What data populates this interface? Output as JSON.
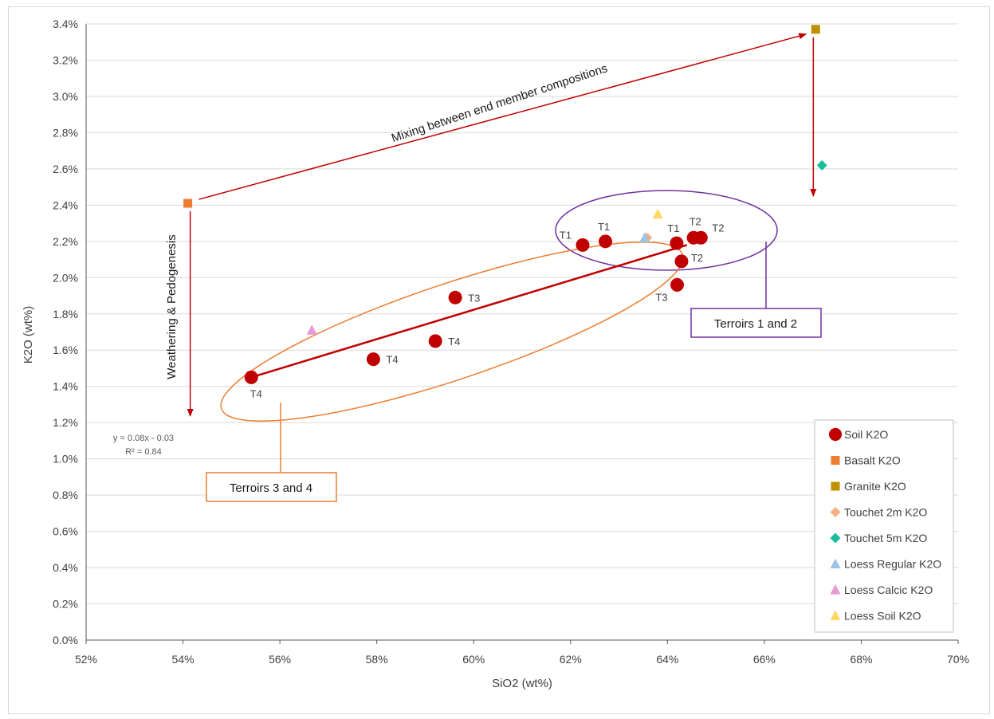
{
  "chart_data": {
    "type": "scatter",
    "xlabel": "SiO2 (wt%)",
    "ylabel": "K2O (wt%)",
    "xlim": [
      0.52,
      0.7
    ],
    "ylim": [
      0.0,
      0.034
    ],
    "x_ticks": [
      "52%",
      "54%",
      "56%",
      "58%",
      "60%",
      "62%",
      "64%",
      "66%",
      "68%",
      "70%"
    ],
    "y_ticks": [
      "0.0%",
      "0.2%",
      "0.4%",
      "0.6%",
      "0.8%",
      "1.0%",
      "1.2%",
      "1.4%",
      "1.6%",
      "1.8%",
      "2.0%",
      "2.2%",
      "2.4%",
      "2.6%",
      "2.8%",
      "3.0%",
      "3.2%",
      "3.4%"
    ],
    "grid": "horizontal",
    "legend_position": "bottom-right",
    "series": [
      {
        "name": "Soil K2O",
        "marker": "circle",
        "color": "#c00000",
        "points": [
          {
            "x": 0.6225,
            "y": 0.0218,
            "label": "T1"
          },
          {
            "x": 0.6272,
            "y": 0.022,
            "label": "T1"
          },
          {
            "x": 0.6419,
            "y": 0.0219,
            "label": "T1"
          },
          {
            "x": 0.6454,
            "y": 0.0222,
            "label": "T2"
          },
          {
            "x": 0.6469,
            "y": 0.0222,
            "label": "T2"
          },
          {
            "x": 0.6429,
            "y": 0.0209,
            "label": "T2"
          },
          {
            "x": 0.642,
            "y": 0.0196,
            "label": "T3"
          },
          {
            "x": 0.5962,
            "y": 0.0189,
            "label": "T3"
          },
          {
            "x": 0.5921,
            "y": 0.0165,
            "label": "T4"
          },
          {
            "x": 0.5793,
            "y": 0.0155,
            "label": "T4"
          },
          {
            "x": 0.5541,
            "y": 0.0145,
            "label": "T4"
          }
        ]
      },
      {
        "name": "Basalt K2O",
        "marker": "square",
        "color": "#ed7d31",
        "points": [
          {
            "x": 0.541,
            "y": 0.0241
          }
        ]
      },
      {
        "name": "Granite K2O",
        "marker": "square",
        "color": "#bf9000",
        "points": [
          {
            "x": 0.6706,
            "y": 0.0337
          }
        ]
      },
      {
        "name": "Touchet 2m K2O",
        "marker": "diamond",
        "color": "#f4b183",
        "points": [
          {
            "x": 0.6358,
            "y": 0.0222
          }
        ]
      },
      {
        "name": "Touchet 5m K2O",
        "marker": "diamond",
        "color": "#1abc9c",
        "points": [
          {
            "x": 0.6719,
            "y": 0.0262
          }
        ]
      },
      {
        "name": "Loess Regular K2O",
        "marker": "triangle",
        "color": "#9dc3e6",
        "points": [
          {
            "x": 0.6353,
            "y": 0.0222
          }
        ]
      },
      {
        "name": "Loess Calcic K2O",
        "marker": "triangle",
        "color": "#e69ad6",
        "points": [
          {
            "x": 0.5666,
            "y": 0.0171
          }
        ]
      },
      {
        "name": "Loess Soil K2O",
        "marker": "triangle",
        "color": "#ffd966",
        "points": [
          {
            "x": 0.638,
            "y": 0.0235
          }
        ]
      }
    ],
    "trendline": {
      "equation": "y = 0.08x - 0.03",
      "r_squared": "R² = 0.84",
      "x_start": 0.5541,
      "y_start": 0.0145,
      "x_end": 0.644,
      "y_end": 0.0218,
      "color": "#c00000"
    },
    "annotations": {
      "mixing": "Mixing between end member compositions",
      "weathering": "Weathering & Pedogenesis",
      "terroirs_12": "Terroirs 1 and 2",
      "terroirs_34": "Terroirs 3 and 4",
      "arrow_color": "#c00000",
      "terroirs_12_color": "#7030a0",
      "terroirs_34_color": "#ed7d31"
    }
  }
}
